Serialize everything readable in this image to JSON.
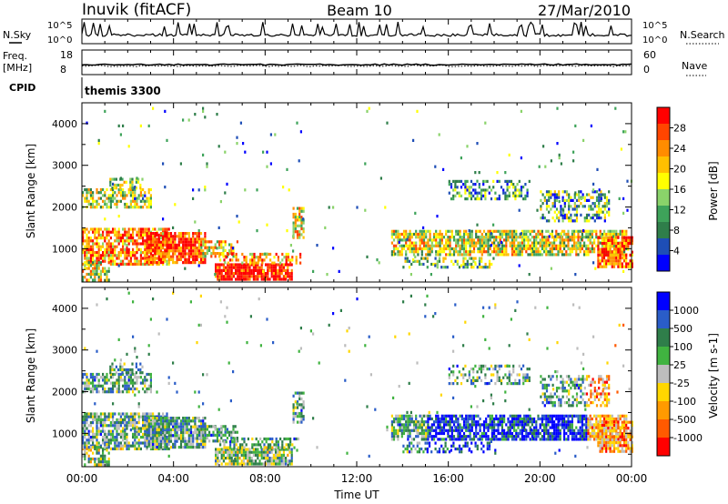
{
  "header": {
    "station": "Inuvik (fitACF)",
    "beam": "Beam 10",
    "date": "27/Mar/2010"
  },
  "sky_panel": {
    "left_label": "N.Sky",
    "right_label": "N.Search",
    "left_ticks": [
      "10^5",
      "10^0"
    ],
    "right_ticks": [
      "10^5",
      "10^0"
    ]
  },
  "freq_panel": {
    "left_label_1": "Freq.",
    "left_label_2": "[MHz]",
    "right_label": "Nave",
    "left_ticks": [
      "18",
      "8"
    ],
    "right_ticks": [
      "60",
      "0"
    ]
  },
  "cpid_panel": {
    "label": "CPID",
    "value": "themis 3300"
  },
  "chart_data": [
    {
      "type": "heatmap",
      "title": "Power",
      "ylabel": "Slant Range [km]",
      "xlabel": "Time UT",
      "x_ticks": [
        "00:00",
        "04:00",
        "08:00",
        "12:00",
        "16:00",
        "20:00",
        "00:00"
      ],
      "y_ticks": [
        1000,
        2000,
        3000,
        4000
      ],
      "ylim": [
        200,
        4500
      ],
      "colorbar_label": "Power [dB]",
      "colorbar_ticks": [
        "28",
        "24",
        "20",
        "16",
        "12",
        "8",
        "4"
      ],
      "colorscale": [
        "#0000ff",
        "#1e4eb6",
        "#2f7e4a",
        "#3ea35a",
        "#8ad36a",
        "#ffff00",
        "#ffc000",
        "#ff8c00",
        "#ff4500",
        "#ff0000"
      ]
    },
    {
      "type": "heatmap",
      "title": "Velocity",
      "ylabel": "Slant Range [km]",
      "xlabel": "Time UT",
      "x_ticks": [
        "00:00",
        "04:00",
        "08:00",
        "12:00",
        "16:00",
        "20:00",
        "00:00"
      ],
      "y_ticks": [
        1000,
        2000,
        3000,
        4000
      ],
      "ylim": [
        200,
        4500
      ],
      "colorbar_label": "Velocity [m s-1]",
      "colorbar_ticks": [
        "1000",
        "500",
        "100",
        "25",
        "-25",
        "-100",
        "-500",
        "-1000"
      ],
      "colorscale": [
        "#0000ff",
        "#2a5dc8",
        "#2f7e4a",
        "#40b340",
        "#bdbdbd",
        "#ffd700",
        "#ff9a00",
        "#ff5a00",
        "#ff0000"
      ]
    }
  ],
  "x_axis_label": "Time UT"
}
